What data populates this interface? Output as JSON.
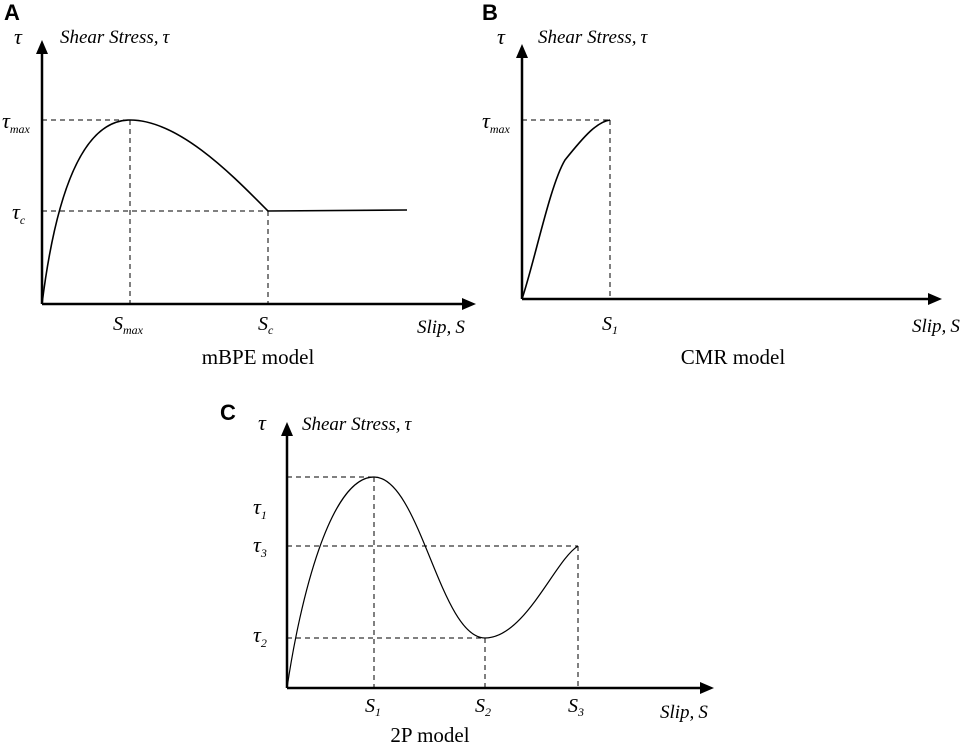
{
  "panels": [
    {
      "letter": "A",
      "y_axis_symbol": "τ",
      "y_axis_title": "Shear Stress,",
      "y_axis_title_symbol": "τ",
      "x_axis_title": "Slip,",
      "x_axis_title_symbol": "S",
      "caption": "mBPE model",
      "y_ticks": [
        {
          "base": "τ",
          "sub": "max"
        },
        {
          "base": "τ",
          "sub": "c"
        }
      ],
      "x_ticks": [
        {
          "base": "S",
          "sub": "max"
        },
        {
          "base": "S",
          "sub": "c"
        }
      ]
    },
    {
      "letter": "B",
      "y_axis_symbol": "τ",
      "y_axis_title": "Shear Stress,",
      "y_axis_title_symbol": "τ",
      "x_axis_title": "Slip,",
      "x_axis_title_symbol": "S",
      "caption": "CMR model",
      "y_ticks": [
        {
          "base": "τ",
          "sub": "max"
        }
      ],
      "x_ticks": [
        {
          "base": "S",
          "sub": "1"
        }
      ]
    },
    {
      "letter": "C",
      "y_axis_symbol": "τ",
      "y_axis_title": "Shear Stress,",
      "y_axis_title_symbol": "τ",
      "x_axis_title": "Slip,",
      "x_axis_title_symbol": "S",
      "caption": "2P model",
      "y_ticks": [
        {
          "base": "τ",
          "sub": "1"
        },
        {
          "base": "τ",
          "sub": "3"
        },
        {
          "base": "τ",
          "sub": "2"
        }
      ],
      "x_ticks": [
        {
          "base": "S",
          "sub": "1"
        },
        {
          "base": "S",
          "sub": "2"
        },
        {
          "base": "S",
          "sub": "3"
        }
      ]
    }
  ]
}
